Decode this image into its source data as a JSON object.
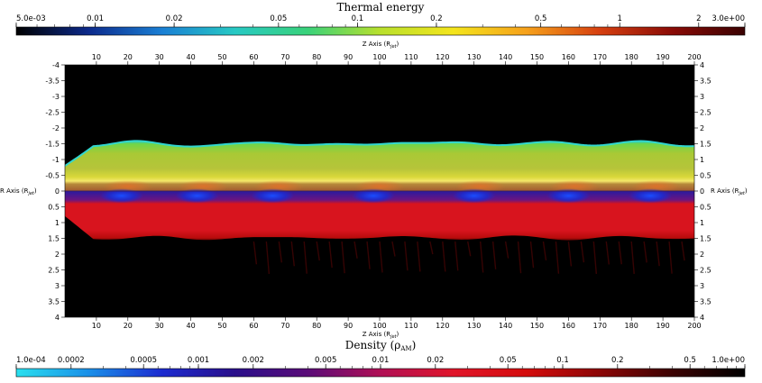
{
  "chart_data": {
    "type": "heatmap",
    "top_colorbar": {
      "title": "Thermal energy",
      "scale": "log",
      "range": [
        0.005,
        3.0
      ],
      "ticks": [
        {
          "value": 0.005,
          "label": "5.0e-03"
        },
        {
          "value": 0.01,
          "label": "0.01"
        },
        {
          "value": 0.02,
          "label": "0.02"
        },
        {
          "value": 0.05,
          "label": "0.05"
        },
        {
          "value": 0.1,
          "label": "0.1"
        },
        {
          "value": 0.2,
          "label": "0.2"
        },
        {
          "value": 0.5,
          "label": "0.5"
        },
        {
          "value": 1,
          "label": "1"
        },
        {
          "value": 2,
          "label": "2"
        },
        {
          "value": 3.0,
          "label": "3.0e+00"
        }
      ],
      "colors": [
        "#000000",
        "#0c2a8c",
        "#1a7fd4",
        "#27c9c4",
        "#39d27a",
        "#b9e02c",
        "#f4e51c",
        "#f6a11b",
        "#d64010",
        "#8a0b06",
        "#3a0202"
      ]
    },
    "bottom_colorbar": {
      "title": "Density (ρ",
      "title_sub": "AM",
      "title_end": ")",
      "scale": "log",
      "range": [
        0.0001,
        1.0
      ],
      "ticks": [
        {
          "value": 0.0001,
          "label": "1.0e-04"
        },
        {
          "value": 0.0002,
          "label": "0.0002"
        },
        {
          "value": 0.0005,
          "label": "0.0005"
        },
        {
          "value": 0.001,
          "label": "0.001"
        },
        {
          "value": 0.002,
          "label": "0.002"
        },
        {
          "value": 0.005,
          "label": "0.005"
        },
        {
          "value": 0.01,
          "label": "0.01"
        },
        {
          "value": 0.02,
          "label": "0.02"
        },
        {
          "value": 0.05,
          "label": "0.05"
        },
        {
          "value": 0.1,
          "label": "0.1"
        },
        {
          "value": 0.2,
          "label": "0.2"
        },
        {
          "value": 0.5,
          "label": "0.5"
        },
        {
          "value": 1.0,
          "label": "1.0e+00"
        }
      ],
      "colors": [
        "#2ae0ee",
        "#1a8fe8",
        "#1c2bd0",
        "#2a0f8a",
        "#5a0c78",
        "#b01055",
        "#e0152a",
        "#d40c0c",
        "#8c0606",
        "#3c0202",
        "#000000"
      ]
    },
    "x_axis": {
      "label": "Z Axis (R",
      "label_sub": "jet",
      "label_end": ")",
      "range": [
        0,
        200
      ],
      "ticks": [
        10,
        20,
        30,
        40,
        50,
        60,
        70,
        80,
        90,
        100,
        110,
        120,
        130,
        140,
        150,
        160,
        170,
        180,
        190,
        200
      ]
    },
    "y_axis": {
      "label": "R Axis (R",
      "label_sub": "jet",
      "label_end": ")",
      "range": [
        -4,
        4
      ],
      "left_ticks": [
        {
          "value": -4,
          "label": "-4"
        },
        {
          "value": -3.5,
          "label": "-3.5"
        },
        {
          "value": -3,
          "label": "-3"
        },
        {
          "value": -2.5,
          "label": "-2.5"
        },
        {
          "value": -2,
          "label": "-2"
        },
        {
          "value": -1.5,
          "label": "-1.5"
        },
        {
          "value": -1,
          "label": "-1"
        },
        {
          "value": -0.5,
          "label": "-0.5"
        },
        {
          "value": 0,
          "label": "0"
        },
        {
          "value": 0.5,
          "label": "0.5"
        },
        {
          "value": 1,
          "label": "1"
        },
        {
          "value": 1.5,
          "label": "1.5"
        },
        {
          "value": 2,
          "label": "2"
        },
        {
          "value": 2.5,
          "label": "2.5"
        },
        {
          "value": 3,
          "label": "3"
        },
        {
          "value": 3.5,
          "label": "3.5"
        },
        {
          "value": 4,
          "label": "4"
        }
      ],
      "right_ticks": [
        {
          "value": -4,
          "label": "4"
        },
        {
          "value": -3.5,
          "label": "3.5"
        },
        {
          "value": -3,
          "label": "3"
        },
        {
          "value": -2.5,
          "label": "2.5"
        },
        {
          "value": -2,
          "label": "2"
        },
        {
          "value": -1.5,
          "label": "1.5"
        },
        {
          "value": -1,
          "label": "1"
        },
        {
          "value": -0.5,
          "label": "0.5"
        },
        {
          "value": 0,
          "label": "0"
        },
        {
          "value": 0.5,
          "label": "0.5"
        },
        {
          "value": 1,
          "label": "1"
        },
        {
          "value": 1.5,
          "label": "1.5"
        },
        {
          "value": 2,
          "label": "2"
        },
        {
          "value": 2.5,
          "label": "2.5"
        },
        {
          "value": 3,
          "label": "3"
        },
        {
          "value": 3.5,
          "label": "3.5"
        },
        {
          "value": 4,
          "label": "4"
        }
      ]
    },
    "upper_half": {
      "field": "Thermal energy",
      "r_range": [
        -4,
        0
      ],
      "boundary_r_mean": -1.45,
      "boundary_amplitude": 0.1,
      "boundary_bumps_z": [
        22,
        66,
        105,
        128,
        157,
        184
      ]
    },
    "lower_half": {
      "field": "Density",
      "r_range": [
        0,
        4
      ],
      "boundary_r_mean": 1.45,
      "boundary_amplitude": 0.1,
      "blue_core_z": [
        18,
        42,
        66,
        98,
        130,
        160,
        186
      ]
    },
    "grid": false,
    "legend": "colorbars top and bottom"
  }
}
